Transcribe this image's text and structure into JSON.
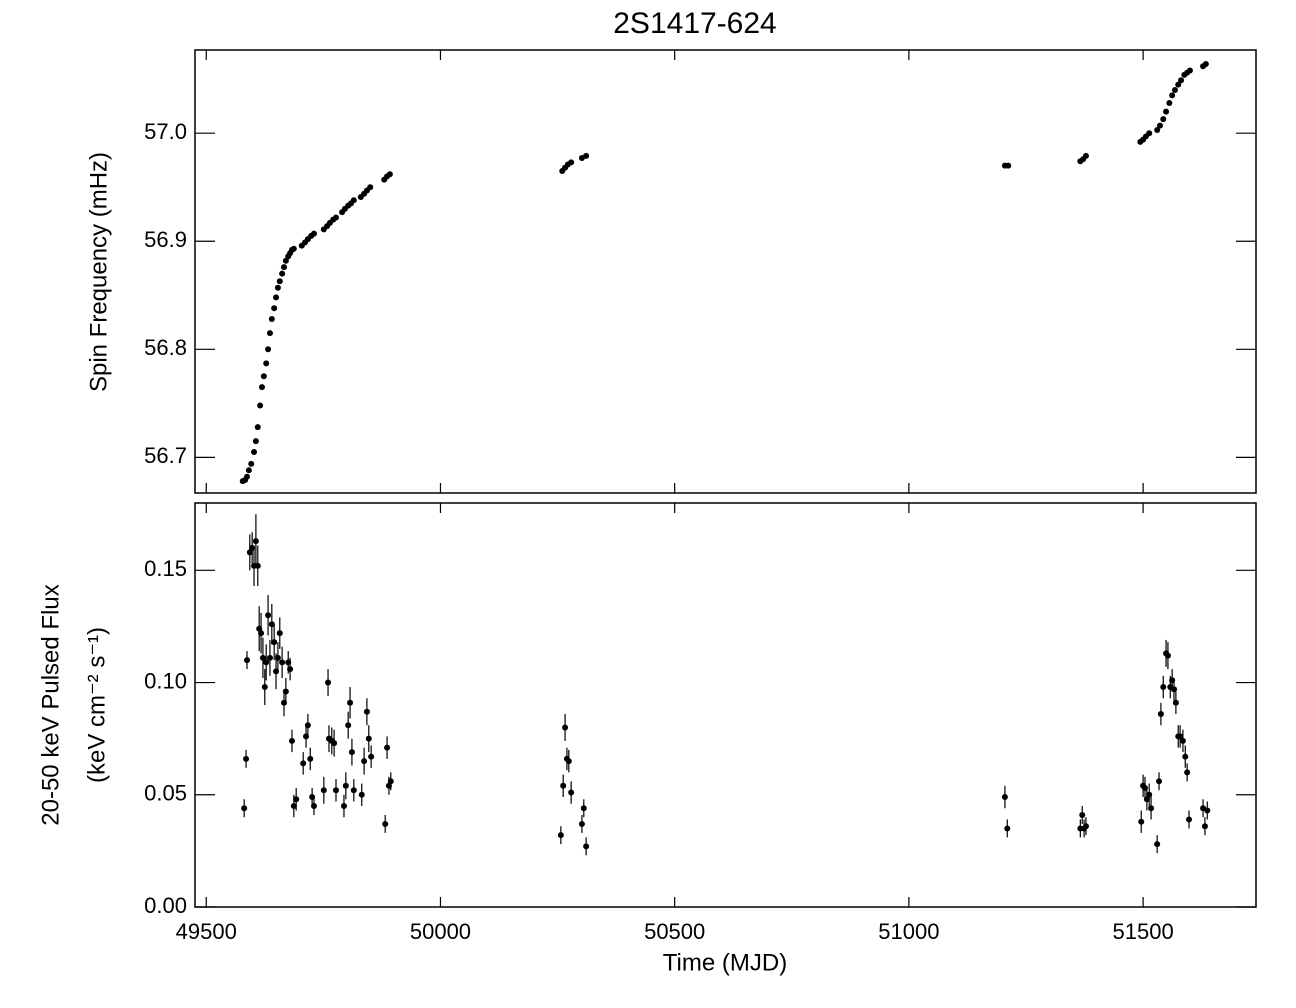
{
  "chart_data": [
    {
      "type": "scatter",
      "title": "2S1417-624",
      "ylabel": "Spin Frequency (mHz)",
      "color": "#000000",
      "xlim": [
        49476,
        51741
      ],
      "xticks": [
        49500,
        50000,
        50500,
        51000,
        51500
      ],
      "ylim": [
        56.667,
        57.077
      ],
      "yticks": [
        56.7,
        56.8,
        56.9,
        {
          "value": 57,
          "label": "57.0"
        }
      ],
      "x": [
        49578,
        49583,
        49587,
        49591,
        49596,
        49602,
        49606,
        49610,
        49615,
        49619,
        49623,
        49628,
        49632,
        49636,
        49640,
        49645,
        49649,
        49653,
        49657,
        49662,
        49666,
        49670,
        49675,
        49679,
        49683,
        49687,
        49704,
        49711,
        49717,
        49724,
        49730,
        49751,
        49758,
        49764,
        49771,
        49777,
        49790,
        49796,
        49803,
        49809,
        49815,
        49830,
        49837,
        49843,
        49850,
        49880,
        49886,
        49892,
        50260,
        50266,
        50272,
        50279,
        50302,
        50311,
        51205,
        51212,
        51366,
        51372,
        51378,
        51494,
        51500,
        51506,
        51513,
        51530,
        51536,
        51543,
        51549,
        51556,
        51562,
        51568,
        51575,
        51581,
        51588,
        51594,
        51600,
        51628,
        51634
      ],
      "y": [
        56.678,
        56.679,
        56.682,
        56.688,
        56.694,
        56.705,
        56.715,
        56.728,
        56.748,
        56.765,
        56.775,
        56.787,
        56.8,
        56.815,
        56.828,
        56.838,
        56.848,
        56.857,
        56.863,
        56.87,
        56.876,
        56.882,
        56.886,
        56.889,
        56.892,
        56.893,
        56.896,
        56.899,
        56.902,
        56.905,
        56.907,
        56.911,
        56.914,
        56.917,
        56.92,
        56.922,
        56.927,
        56.93,
        56.933,
        56.935,
        56.938,
        56.941,
        56.944,
        56.947,
        56.95,
        56.957,
        56.96,
        56.962,
        56.965,
        56.968,
        56.971,
        56.973,
        56.977,
        56.979,
        56.97,
        56.97,
        56.974,
        56.976,
        56.979,
        56.992,
        56.994,
        56.997,
        57.0,
        57.003,
        57.007,
        57.013,
        57.02,
        57.028,
        57.035,
        57.04,
        57.045,
        57.049,
        57.054,
        57.056,
        57.058,
        57.062,
        57.064
      ]
    },
    {
      "type": "scatter",
      "xlabel": "Time (MJD)",
      "ylabel": [
        "20-50 keV Pulsed Flux",
        "(keV cm⁻² s⁻¹)"
      ],
      "color": "#000000",
      "xlim": [
        49476,
        51741
      ],
      "xticks": [
        49500,
        50000,
        50500,
        51000,
        51500
      ],
      "ylim": [
        0,
        0.18
      ],
      "yticks": [
        {
          "value": 0,
          "label": "0.00"
        },
        0.05,
        {
          "value": 0.1,
          "label": "0.10"
        },
        0.15
      ],
      "x": [
        49581,
        49585,
        49587,
        49593,
        49598,
        49602,
        49606,
        49610,
        49613,
        49617,
        49621,
        49625,
        49628,
        49632,
        49636,
        49640,
        49645,
        49649,
        49653,
        49657,
        49662,
        49666,
        49670,
        49675,
        49679,
        49683,
        49687,
        49692,
        49707,
        49713,
        49717,
        49722,
        49726,
        49730,
        49751,
        49760,
        49762,
        49768,
        49773,
        49777,
        49794,
        49798,
        49803,
        49807,
        49811,
        49815,
        49832,
        49837,
        49843,
        49847,
        49852,
        49882,
        49886,
        49890,
        49894,
        50257,
        50262,
        50266,
        50270,
        50274,
        50279,
        50302,
        50306,
        50311,
        51205,
        51210,
        51366,
        51370,
        51374,
        51378,
        51496,
        51500,
        51504,
        51508,
        51513,
        51517,
        51530,
        51534,
        51538,
        51543,
        51549,
        51553,
        51558,
        51562,
        51566,
        51570,
        51575,
        51579,
        51585,
        51590,
        51594,
        51598,
        51628,
        51632,
        51637
      ],
      "y": [
        0.044,
        0.066,
        0.11,
        0.158,
        0.16,
        0.152,
        0.163,
        0.152,
        0.124,
        0.122,
        0.111,
        0.098,
        0.109,
        0.13,
        0.111,
        0.126,
        0.118,
        0.105,
        0.111,
        0.122,
        0.109,
        0.091,
        0.096,
        0.109,
        0.106,
        0.074,
        0.045,
        0.048,
        0.064,
        0.076,
        0.081,
        0.066,
        0.049,
        0.045,
        0.052,
        0.1,
        0.075,
        0.074,
        0.073,
        0.052,
        0.045,
        0.054,
        0.081,
        0.091,
        0.069,
        0.052,
        0.05,
        0.065,
        0.087,
        0.075,
        0.067,
        0.037,
        0.071,
        0.054,
        0.056,
        0.032,
        0.054,
        0.08,
        0.066,
        0.065,
        0.051,
        0.037,
        0.044,
        0.027,
        0.049,
        0.035,
        0.035,
        0.041,
        0.035,
        0.036,
        0.038,
        0.054,
        0.053,
        0.048,
        0.05,
        0.044,
        0.028,
        0.056,
        0.086,
        0.098,
        0.113,
        0.112,
        0.098,
        0.101,
        0.097,
        0.091,
        0.076,
        0.076,
        0.074,
        0.067,
        0.06,
        0.039,
        0.044,
        0.036,
        0.043
      ],
      "yerr": [
        0.004,
        0.004,
        0.004,
        0.008,
        0.007,
        0.009,
        0.012,
        0.009,
        0.01,
        0.009,
        0.009,
        0.008,
        0.008,
        0.009,
        0.008,
        0.009,
        0.008,
        0.008,
        0.007,
        0.007,
        0.007,
        0.006,
        0.006,
        0.005,
        0.005,
        0.005,
        0.005,
        0.005,
        0.005,
        0.005,
        0.005,
        0.005,
        0.004,
        0.004,
        0.006,
        0.006,
        0.006,
        0.006,
        0.006,
        0.005,
        0.005,
        0.006,
        0.006,
        0.007,
        0.006,
        0.005,
        0.005,
        0.006,
        0.006,
        0.006,
        0.005,
        0.004,
        0.005,
        0.004,
        0.004,
        0.004,
        0.005,
        0.006,
        0.005,
        0.005,
        0.005,
        0.004,
        0.004,
        0.004,
        0.005,
        0.004,
        0.004,
        0.004,
        0.004,
        0.004,
        0.005,
        0.005,
        0.005,
        0.005,
        0.005,
        0.005,
        0.004,
        0.004,
        0.005,
        0.005,
        0.006,
        0.006,
        0.005,
        0.005,
        0.005,
        0.005,
        0.005,
        0.005,
        0.005,
        0.005,
        0.004,
        0.004,
        0.004,
        0.004,
        0.004
      ]
    }
  ]
}
